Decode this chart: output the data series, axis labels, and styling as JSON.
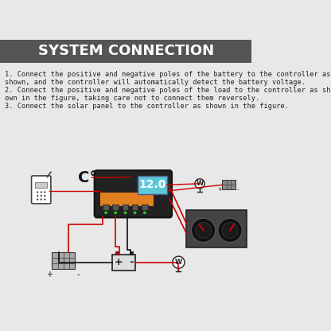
{
  "title": "SYSTEM CONNECTION",
  "title_bg": "#555555",
  "title_color": "#ffffff",
  "title_fontsize": 13,
  "bg_color": "#e8e8e8",
  "text_color": "#222222",
  "instruction_lines": [
    "1. Connect the positive and negative poles of the battery to the controller as",
    "shown, and the controller will automatically detect the battery voltage.",
    "2. Connect the positive and negative poles of the load to the controller as sh-",
    "own in the figure, taking care not to connect them reversely.",
    "3. Connect the solar panel to the controller as shown in the figure."
  ],
  "wire_color_red": "#cc0000",
  "wire_color_black": "#111111",
  "lcd_color": "#5bc8d8",
  "controller_body": "#222222",
  "controller_orange": "#e08020",
  "load_panel_bg": "#555555"
}
